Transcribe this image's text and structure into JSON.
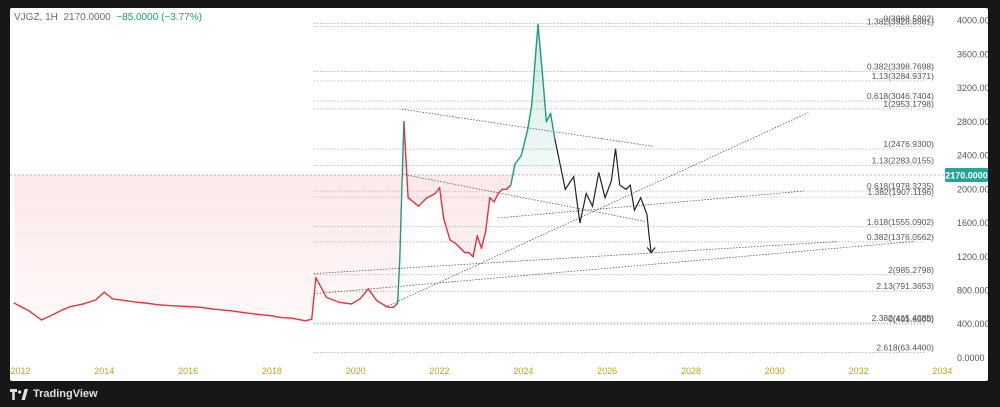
{
  "header": {
    "symbol": "VJGZ, 1H",
    "price": "2170.0000",
    "change": "−85.0000 (−3.77%)"
  },
  "footer": {
    "brand": "TradingView"
  },
  "colors": {
    "bull": "#1a9c82",
    "bear": "#e8323c",
    "projection": "#222222",
    "fib": "#555555",
    "axis_text": "#555555",
    "x_axis_text": "#c8a017",
    "price_badge": "#22a59a"
  },
  "chart_data": {
    "type": "line",
    "title": "",
    "xlabel": "",
    "ylabel": "",
    "xlim": [
      2011.75,
      2034.3
    ],
    "ylim": [
      -60,
      4150
    ],
    "grid": false,
    "current_price": 2170.0,
    "current_price_label": "2170.0000",
    "x_ticks": [
      "2012",
      "2014",
      "2016",
      "2018",
      "2020",
      "2022",
      "2024",
      "2026",
      "2028",
      "2030",
      "2032",
      "2034"
    ],
    "y_ticks": [
      {
        "value": 0,
        "label": "0.0000"
      },
      {
        "value": 400,
        "label": "400.0000"
      },
      {
        "value": 800,
        "label": "800.0000"
      },
      {
        "value": 1200,
        "label": "1200.0000"
      },
      {
        "value": 1600,
        "label": "1600.0000"
      },
      {
        "value": 2000,
        "label": "2000.0000"
      },
      {
        "value": 2400,
        "label": "2400.0000"
      },
      {
        "value": 2800,
        "label": "2800.0000"
      },
      {
        "value": 3200,
        "label": "3200.0000"
      },
      {
        "value": 3600,
        "label": "3600.0000"
      },
      {
        "value": 4000,
        "label": "4000.0000"
      }
    ],
    "fib_levels": [
      {
        "label": "0(3968.5802)",
        "value": 3968.58
      },
      {
        "label": "1.382(3928.8561)",
        "value": 3928.86
      },
      {
        "label": "0.382(3398.7698)",
        "value": 3398.77
      },
      {
        "label": "1.13(3284.9371)",
        "value": 3284.94
      },
      {
        "label": "0.618(3046.7404)",
        "value": 3046.74
      },
      {
        "label": "1(2953.1798)",
        "value": 2953.18
      },
      {
        "label": "1(2476.9300)",
        "value": 2476.93
      },
      {
        "label": "1.13(2283.0155)",
        "value": 2283.02
      },
      {
        "label": "0.618(1978.3235)",
        "value": 1978.32
      },
      {
        "label": "1.382(1907.1196)",
        "value": 1907.12
      },
      {
        "label": "1.618(1555.0902)",
        "value": 1555.09
      },
      {
        "label": "0.382(1376.0562)",
        "value": 1376.06
      },
      {
        "label": "2(985.2798)",
        "value": 985.28
      },
      {
        "label": "2.13(791.3653)",
        "value": 791.37
      },
      {
        "label": "2.382(415.4085)",
        "value": 415.41
      },
      {
        "label": "0(401.6500)",
        "value": 401.65
      },
      {
        "label": "2.618(63.4400)",
        "value": 63.44
      }
    ],
    "series": [
      {
        "type": "price",
        "x": [
          2011.85,
          2012.2,
          2012.5,
          2012.8,
          2013.0,
          2013.2,
          2013.5,
          2013.8,
          2014.0,
          2014.2,
          2014.5,
          2014.8,
          2015.0,
          2015.3,
          2015.6,
          2016.0,
          2016.3,
          2016.6,
          2017.0,
          2017.3,
          2017.6,
          2018.0,
          2018.2,
          2018.5,
          2018.8,
          2018.95,
          2019.05,
          2019.3,
          2019.6,
          2019.9,
          2020.1,
          2020.3,
          2020.5,
          2020.7,
          2020.8,
          2020.9,
          2021.0,
          2021.05,
          2021.1,
          2021.15,
          2021.25,
          2021.5,
          2021.7,
          2021.9,
          2022.0,
          2022.1,
          2022.25,
          2022.4,
          2022.5,
          2022.6,
          2022.7,
          2022.8,
          2022.9,
          2023.0,
          2023.1,
          2023.2,
          2023.3,
          2023.4,
          2023.5,
          2023.6,
          2023.7,
          2023.8,
          2023.95,
          2024.1,
          2024.2,
          2024.3,
          2024.35,
          2024.45,
          2024.55,
          2024.65,
          2024.75
        ],
        "y": [
          650,
          560,
          450,
          520,
          570,
          610,
          640,
          690,
          780,
          700,
          680,
          660,
          650,
          630,
          620,
          610,
          600,
          580,
          560,
          540,
          520,
          500,
          480,
          470,
          440,
          460,
          950,
          720,
          660,
          640,
          700,
          820,
          680,
          620,
          600,
          600,
          650,
          1150,
          2000,
          2800,
          1900,
          1800,
          1900,
          1950,
          2020,
          1650,
          1400,
          1350,
          1300,
          1250,
          1250,
          1200,
          1450,
          1300,
          1500,
          1900,
          1850,
          1950,
          2000,
          2000,
          2050,
          2300,
          2400,
          2700,
          3000,
          3650,
          3950,
          3400,
          2800,
          2900,
          2600
        ]
      },
      {
        "type": "projection",
        "x": [
          2024.75,
          2025.0,
          2025.2,
          2025.35,
          2025.5,
          2025.65,
          2025.8,
          2025.95,
          2026.1,
          2026.2,
          2026.3,
          2026.45,
          2026.55,
          2026.65,
          2026.8,
          2026.95,
          2027.0,
          2027.05
        ],
        "y": [
          2600,
          2000,
          2150,
          1600,
          1950,
          1800,
          2200,
          1900,
          2100,
          2480,
          2050,
          2000,
          2050,
          1750,
          1900,
          1700,
          1450,
          1250
        ]
      }
    ],
    "trendlines": [
      {
        "x": [
          2019.0,
          2031.5
        ],
        "y": [
          1000,
          1380
        ]
      },
      {
        "x": [
          2019.0,
          2033.3
        ],
        "y": [
          760,
          1380
        ]
      },
      {
        "x": [
          2020.7,
          2030.8
        ],
        "y": [
          600,
          2910
        ]
      },
      {
        "x": [
          2021.1,
          2027.1
        ],
        "y": [
          2950,
          2510
        ]
      },
      {
        "x": [
          2021.1,
          2026.9
        ],
        "y": [
          2180,
          1620
        ]
      },
      {
        "x": [
          2023.4,
          2030.7
        ],
        "y": [
          1660,
          1980
        ]
      }
    ]
  }
}
